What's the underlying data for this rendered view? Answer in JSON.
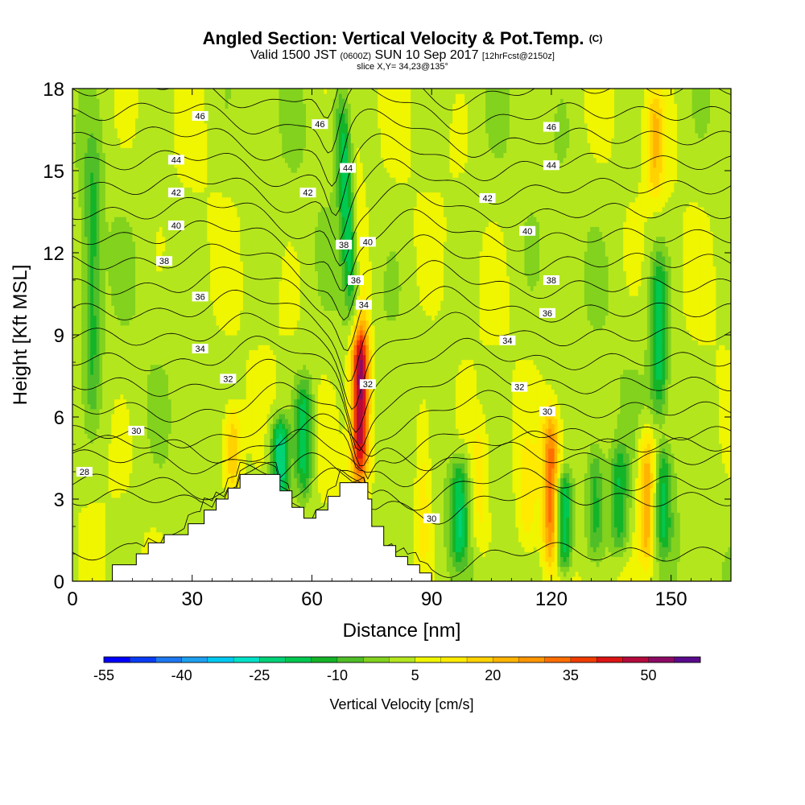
{
  "header": {
    "title": "Angled Section: Vertical Velocity & Pot.Temp.",
    "title_unit": "(C)",
    "subtitle_pre": "Valid 1500 JST",
    "subtitle_z": "(0600Z)",
    "subtitle_date": "SUN 10 Sep 2017",
    "subtitle_fcst": "[12hrFcst@2150z]",
    "slice": "slice X,Y= 34,23@135°"
  },
  "chart_data": {
    "type": "heatmap",
    "title": "Angled Section: Vertical Velocity & Pot.Temp.",
    "xlabel": "Distance [nm]",
    "ylabel": "Height [Kft MSL]",
    "xlim": [
      0,
      165
    ],
    "ylim": [
      0,
      18
    ],
    "x_ticks": [
      "0",
      "30",
      "60",
      "90",
      "120",
      "150"
    ],
    "y_ticks": [
      "0",
      "3",
      "6",
      "9",
      "12",
      "15",
      "18"
    ],
    "colorbar": {
      "label": "Vertical Velocity [cm/s]",
      "tick_labels": [
        "-55",
        "-40",
        "-25",
        "-10",
        "5",
        "20",
        "35",
        "50"
      ],
      "tick_values": [
        -55,
        -40,
        -25,
        -10,
        5,
        20,
        35,
        50
      ],
      "levels": [
        -55,
        -50,
        -45,
        -40,
        -35,
        -30,
        -25,
        -20,
        -15,
        -10,
        -5,
        0,
        5,
        10,
        15,
        20,
        25,
        30,
        35,
        40,
        45,
        50,
        55
      ],
      "colors": [
        "#0000ff",
        "#0a3cf5",
        "#1e78f0",
        "#1ea0f0",
        "#00c8f0",
        "#00e1c8",
        "#00d278",
        "#00c850",
        "#14b428",
        "#50be28",
        "#82d21e",
        "#b4e61e",
        "#f0f500",
        "#ffeb00",
        "#ffd200",
        "#ffb400",
        "#ff9600",
        "#ff6e00",
        "#f03c00",
        "#dc1414",
        "#b40a3c",
        "#8c0a64",
        "#5a0a8c"
      ]
    },
    "velocity_features": [
      {
        "x": 72,
        "z_range": [
          3.4,
          9.3
        ],
        "peak": 50
      },
      {
        "x": 71.5,
        "z_range": [
          6,
          18
        ],
        "peak": 15
      },
      {
        "x": 69,
        "z_range": [
          9.5,
          18
        ],
        "peak": -22
      },
      {
        "x": 120,
        "z_range": [
          0.5,
          6.3
        ],
        "peak": 32
      },
      {
        "x": 123,
        "z_range": [
          0.3,
          4
        ],
        "peak": -25
      },
      {
        "x": 52,
        "z_range": [
          2.8,
          6
        ],
        "peak": -25
      },
      {
        "x": 58,
        "z_range": [
          3,
          7.5
        ],
        "peak": -18
      },
      {
        "x": 97,
        "z_range": [
          0.7,
          4.5
        ],
        "peak": -18
      },
      {
        "x": 144,
        "z_range": [
          0.5,
          5.5
        ],
        "peak": 25
      },
      {
        "x": 40,
        "z_range": [
          3,
          6.5
        ],
        "peak": 20
      },
      {
        "x": 146,
        "z_range": [
          14,
          18
        ],
        "peak": 18
      },
      {
        "x": 147,
        "z_range": [
          6,
          12
        ],
        "peak": -18
      },
      {
        "x": 148,
        "z_range": [
          1,
          5
        ],
        "peak": -15
      },
      {
        "x": 137,
        "z_range": [
          1,
          5
        ],
        "peak": -14
      },
      {
        "x": 131,
        "z_range": [
          1,
          5
        ],
        "peak": -12
      },
      {
        "x": 88,
        "z_range": [
          0.5,
          7
        ],
        "peak": 14
      },
      {
        "x": 102,
        "z_range": [
          1,
          6
        ],
        "peak": 12
      },
      {
        "x": 114,
        "z_range": [
          1,
          5
        ],
        "peak": 12
      },
      {
        "x": 5,
        "z_range": [
          6,
          16
        ],
        "peak": -12
      }
    ],
    "terrain": {
      "x": [
        0,
        10,
        10,
        16,
        16,
        19,
        19,
        23,
        23,
        29,
        29,
        33,
        33,
        36,
        36,
        39,
        39,
        42,
        42,
        52,
        52,
        55,
        55,
        58,
        58,
        61,
        61,
        64,
        64,
        67,
        67,
        74,
        74,
        75,
        75,
        78,
        78,
        81,
        81,
        84,
        84,
        87,
        87,
        90,
        90
      ],
      "z": [
        0,
        0,
        0.6,
        0.6,
        1.0,
        1.0,
        1.4,
        1.4,
        1.7,
        1.7,
        2.1,
        2.1,
        2.6,
        2.6,
        3.0,
        3.0,
        3.4,
        3.4,
        3.9,
        3.9,
        3.3,
        3.3,
        2.7,
        2.7,
        2.3,
        2.3,
        2.6,
        2.6,
        3.1,
        3.1,
        3.6,
        3.6,
        3.0,
        3.0,
        2.0,
        2.0,
        1.3,
        1.3,
        0.9,
        0.9,
        0.6,
        0.6,
        0.3,
        0.3,
        0
      ]
    },
    "theta_levels": [
      28,
      29,
      30,
      31,
      32,
      33,
      34,
      35,
      36,
      37,
      38,
      39,
      40,
      41,
      42,
      43,
      44,
      45,
      46,
      47,
      48
    ],
    "contour_labels": [
      {
        "text": "28",
        "x": 3,
        "z": 4.0
      },
      {
        "text": "30",
        "x": 16,
        "z": 5.5
      },
      {
        "text": "32",
        "x": 39,
        "z": 7.4
      },
      {
        "text": "34",
        "x": 32,
        "z": 8.5
      },
      {
        "text": "36",
        "x": 32,
        "z": 10.4
      },
      {
        "text": "38",
        "x": 23,
        "z": 11.7
      },
      {
        "text": "40",
        "x": 26,
        "z": 13.0
      },
      {
        "text": "42",
        "x": 26,
        "z": 14.2
      },
      {
        "text": "44",
        "x": 26,
        "z": 15.4
      },
      {
        "text": "46",
        "x": 32,
        "z": 17.0
      },
      {
        "text": "46",
        "x": 62,
        "z": 16.7
      },
      {
        "text": "42",
        "x": 59,
        "z": 14.2
      },
      {
        "text": "44",
        "x": 69,
        "z": 15.1
      },
      {
        "text": "38",
        "x": 68,
        "z": 12.3
      },
      {
        "text": "40",
        "x": 74,
        "z": 12.4
      },
      {
        "text": "36",
        "x": 71,
        "z": 11.0
      },
      {
        "text": "34",
        "x": 73,
        "z": 10.1
      },
      {
        "text": "32",
        "x": 74,
        "z": 7.2
      },
      {
        "text": "30",
        "x": 90,
        "z": 2.3
      },
      {
        "text": "42",
        "x": 104,
        "z": 14.0
      },
      {
        "text": "40",
        "x": 114,
        "z": 12.8
      },
      {
        "text": "34",
        "x": 109,
        "z": 8.8
      },
      {
        "text": "32",
        "x": 112,
        "z": 7.1
      },
      {
        "text": "46",
        "x": 120,
        "z": 16.6
      },
      {
        "text": "44",
        "x": 120,
        "z": 15.2
      },
      {
        "text": "38",
        "x": 120,
        "z": 11.0
      },
      {
        "text": "36",
        "x": 119,
        "z": 9.8
      },
      {
        "text": "30",
        "x": 119,
        "z": 6.2
      }
    ],
    "grid": false
  }
}
